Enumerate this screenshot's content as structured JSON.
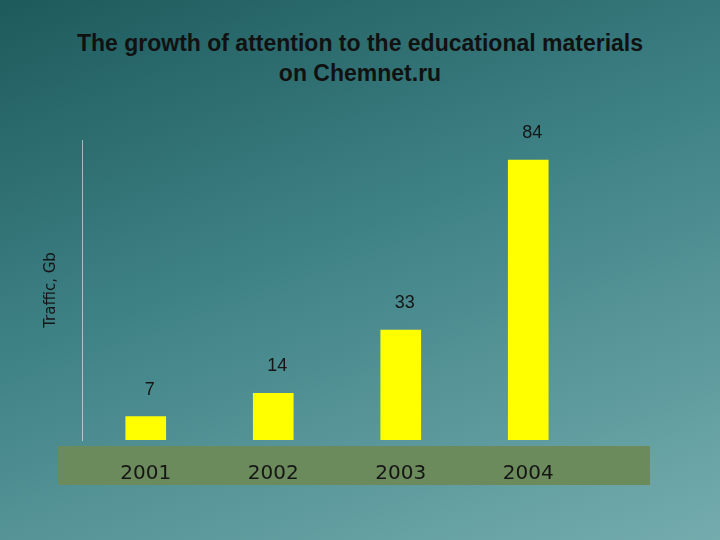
{
  "chart_data": {
    "type": "bar",
    "title": "The growth of attention to the educational materials on Chemnet.ru",
    "y_label": "Traffic, Gb",
    "categories": [
      "2001",
      "2002",
      "2003",
      "2004"
    ],
    "values": [
      7,
      14,
      33,
      84
    ],
    "color": "#ffff00",
    "ylim": [
      0,
      90
    ],
    "grid": false,
    "data_labels": true,
    "tick_labels": "x"
  }
}
